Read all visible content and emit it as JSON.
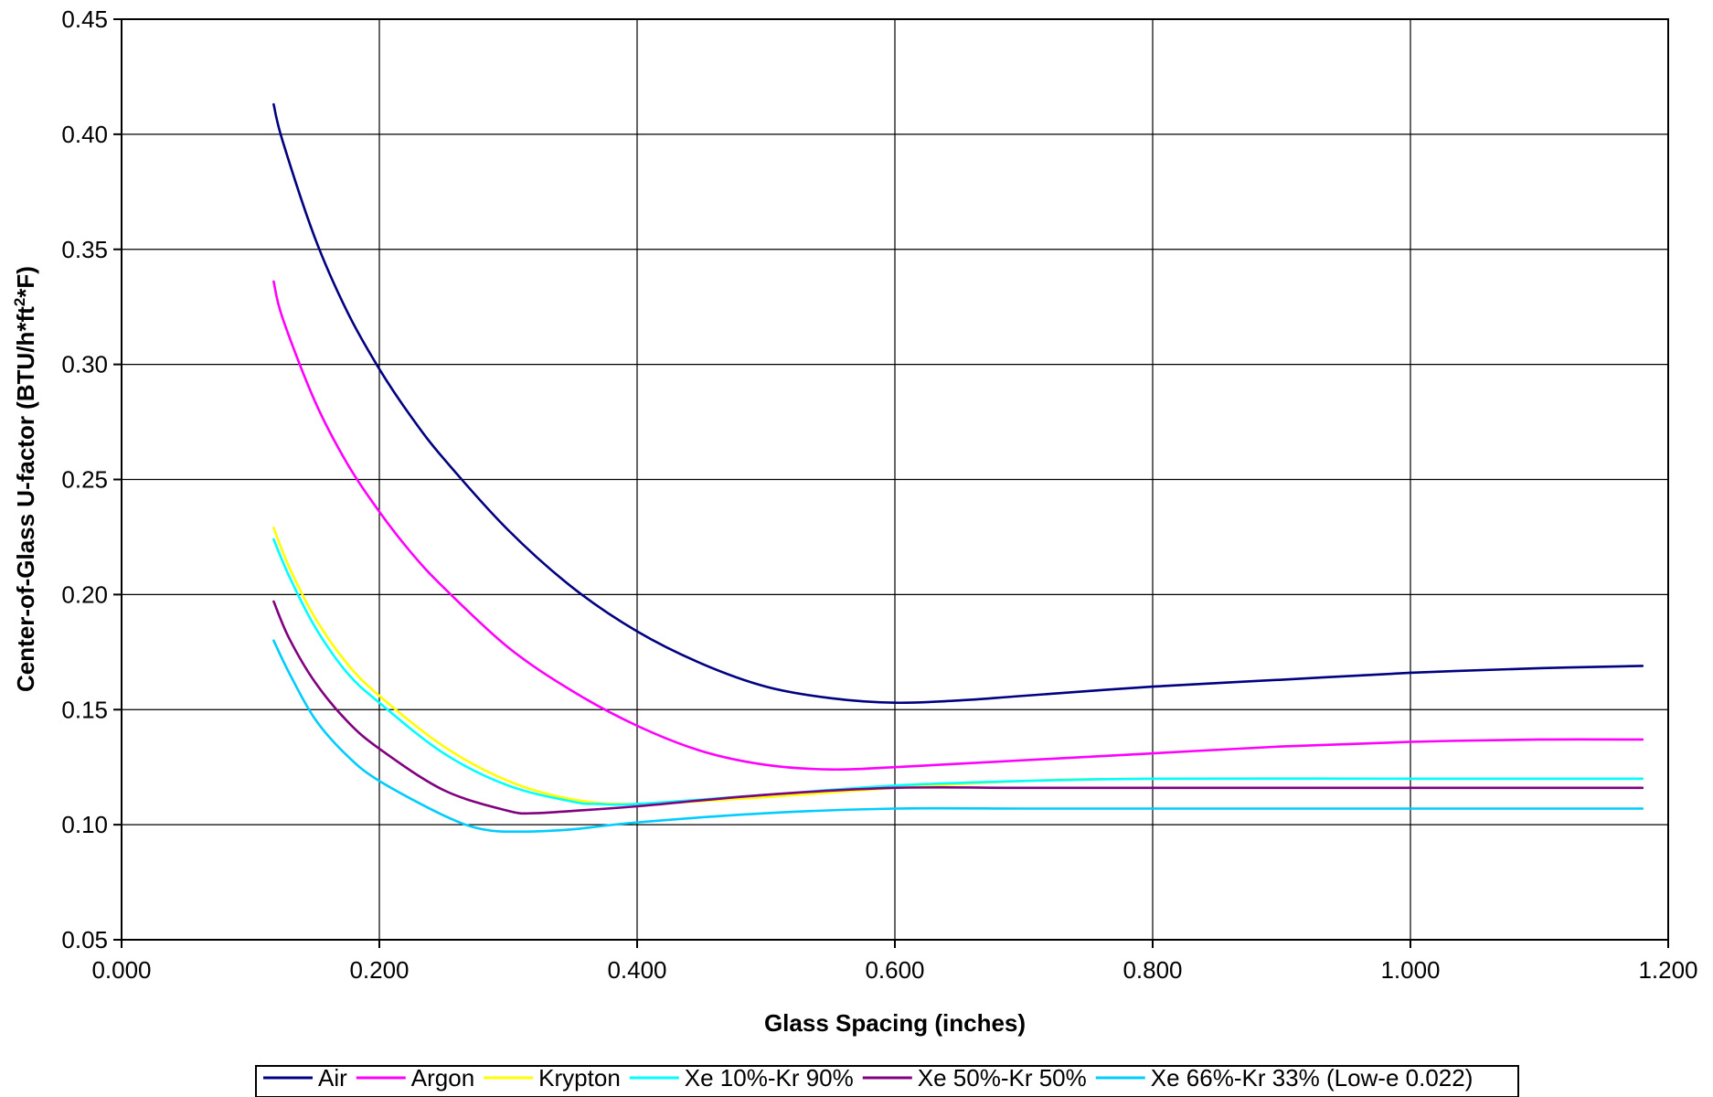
{
  "chart_data": {
    "type": "line",
    "title": "",
    "xlabel": "Glass Spacing (inches)",
    "ylabel_main": "Center-of-Glass U-factor (BTU/h*ft",
    "ylabel_sup": "2",
    "ylabel_end": "*F)",
    "xlim": [
      0.0,
      1.2
    ],
    "ylim": [
      0.05,
      0.45
    ],
    "xticks": [
      0.0,
      0.2,
      0.4,
      0.6,
      0.8,
      1.0,
      1.2
    ],
    "xtick_labels": [
      "0.000",
      "0.200",
      "0.400",
      "0.600",
      "0.800",
      "1.000",
      "1.200"
    ],
    "yticks": [
      0.05,
      0.1,
      0.15,
      0.2,
      0.25,
      0.3,
      0.35,
      0.4,
      0.45
    ],
    "ytick_labels": [
      "0.05",
      "0.10",
      "0.15",
      "0.20",
      "0.25",
      "0.30",
      "0.35",
      "0.40",
      "0.45"
    ],
    "grid": true,
    "legend_position": "bottom",
    "series": [
      {
        "name": "Air",
        "color": "#000080",
        "x": [
          0.118,
          0.125,
          0.15,
          0.175,
          0.2,
          0.225,
          0.25,
          0.3,
          0.35,
          0.4,
          0.45,
          0.5,
          0.55,
          0.6,
          0.65,
          0.7,
          0.8,
          0.9,
          1.0,
          1.1,
          1.18
        ],
        "y": [
          0.413,
          0.397,
          0.355,
          0.323,
          0.298,
          0.277,
          0.259,
          0.228,
          0.203,
          0.184,
          0.17,
          0.16,
          0.155,
          0.153,
          0.154,
          0.156,
          0.16,
          0.163,
          0.166,
          0.168,
          0.169
        ]
      },
      {
        "name": "Argon",
        "color": "#FF00FF",
        "x": [
          0.118,
          0.125,
          0.15,
          0.175,
          0.2,
          0.225,
          0.25,
          0.3,
          0.35,
          0.4,
          0.45,
          0.5,
          0.55,
          0.6,
          0.7,
          0.8,
          0.9,
          1.0,
          1.1,
          1.18
        ],
        "y": [
          0.336,
          0.32,
          0.284,
          0.257,
          0.236,
          0.218,
          0.203,
          0.177,
          0.158,
          0.143,
          0.132,
          0.126,
          0.124,
          0.125,
          0.128,
          0.131,
          0.134,
          0.136,
          0.137,
          0.137
        ]
      },
      {
        "name": "Krypton",
        "color": "#FFFF00",
        "x": [
          0.118,
          0.13,
          0.15,
          0.175,
          0.2,
          0.25,
          0.3,
          0.35,
          0.4,
          0.5,
          0.6,
          0.7,
          0.8,
          1.0,
          1.18
        ],
        "y": [
          0.229,
          0.212,
          0.19,
          0.17,
          0.156,
          0.134,
          0.119,
          0.111,
          0.109,
          0.112,
          0.116,
          0.119,
          0.12,
          0.12,
          0.12
        ]
      },
      {
        "name": "Xe 10%-Kr 90%",
        "color": "#00FFFF",
        "x": [
          0.118,
          0.13,
          0.15,
          0.175,
          0.2,
          0.25,
          0.3,
          0.35,
          0.37,
          0.4,
          0.5,
          0.6,
          0.7,
          0.8,
          1.0,
          1.18
        ],
        "y": [
          0.224,
          0.208,
          0.186,
          0.166,
          0.153,
          0.131,
          0.117,
          0.11,
          0.109,
          0.109,
          0.113,
          0.117,
          0.119,
          0.12,
          0.12,
          0.12
        ]
      },
      {
        "name": "Xe 50%-Kr 50%",
        "color": "#800080",
        "x": [
          0.118,
          0.13,
          0.15,
          0.175,
          0.2,
          0.25,
          0.3,
          0.32,
          0.35,
          0.4,
          0.5,
          0.6,
          0.7,
          0.8,
          1.0,
          1.18
        ],
        "y": [
          0.197,
          0.181,
          0.162,
          0.145,
          0.133,
          0.115,
          0.106,
          0.105,
          0.106,
          0.108,
          0.113,
          0.116,
          0.116,
          0.116,
          0.116,
          0.116
        ]
      },
      {
        "name": "Xe 66%-Kr 33% (Low-e 0.022)",
        "color": "#00CCFF",
        "x": [
          0.118,
          0.13,
          0.15,
          0.175,
          0.2,
          0.25,
          0.28,
          0.31,
          0.35,
          0.4,
          0.5,
          0.6,
          0.7,
          0.8,
          1.0,
          1.18
        ],
        "y": [
          0.18,
          0.166,
          0.146,
          0.13,
          0.119,
          0.104,
          0.098,
          0.097,
          0.098,
          0.101,
          0.105,
          0.107,
          0.107,
          0.107,
          0.107,
          0.107
        ]
      }
    ]
  }
}
